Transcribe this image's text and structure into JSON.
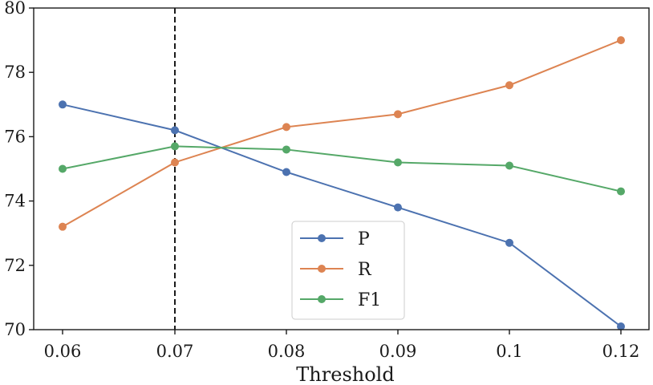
{
  "chart_data": {
    "type": "line",
    "title": "",
    "xlabel": "Threshold",
    "ylabel": "",
    "categories": [
      "0.06",
      "0.07",
      "0.08",
      "0.09",
      "0.1",
      "0.12"
    ],
    "ylim": [
      70,
      80
    ],
    "yticks": [
      "70",
      "72",
      "74",
      "76",
      "78",
      "80"
    ],
    "grid": false,
    "threshold_marker": {
      "category": "0.07",
      "style": "dashed",
      "color": "#1a1a1a"
    },
    "legend_position": "lower-center",
    "series": [
      {
        "name": "P",
        "color": "#4c72b0",
        "values": [
          77.0,
          76.2,
          74.9,
          73.8,
          72.7,
          70.1
        ]
      },
      {
        "name": "R",
        "color": "#dd8452",
        "values": [
          73.2,
          75.2,
          76.3,
          76.7,
          77.6,
          79.0
        ]
      },
      {
        "name": "F1",
        "color": "#55a868",
        "values": [
          75.0,
          75.7,
          75.6,
          75.2,
          75.1,
          74.3
        ]
      }
    ]
  }
}
